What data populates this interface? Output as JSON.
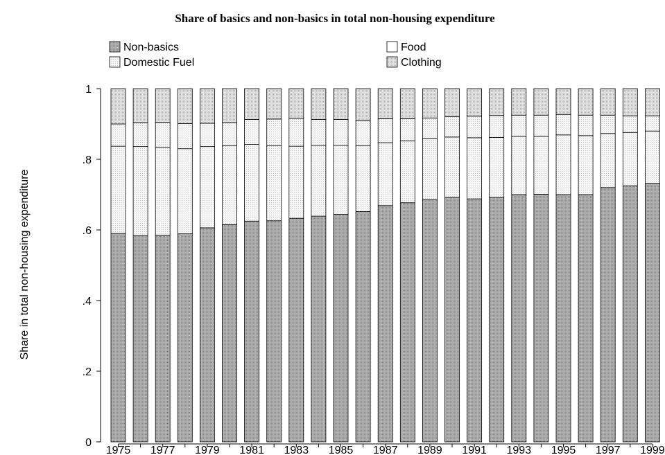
{
  "chart_data": {
    "type": "bar",
    "stacked": true,
    "title": "Share of basics and non-basics in total non-housing expenditure",
    "xlabel": "",
    "ylabel": "Share in total non-housing expenditure",
    "ylim": [
      0,
      1
    ],
    "yticks": [
      "0",
      ".2",
      ".4",
      ".6",
      ".8",
      "1"
    ],
    "grid": false,
    "legend_position": "top",
    "categories": [
      "1975",
      "1976",
      "1977",
      "1978",
      "1979",
      "1980",
      "1981",
      "1982",
      "1983",
      "1984",
      "1985",
      "1986",
      "1987",
      "1988",
      "1989",
      "1990",
      "1991",
      "1992",
      "1993",
      "1994",
      "1995",
      "1996",
      "1997",
      "1998",
      "1999"
    ],
    "x_tick_labels": [
      "1975",
      "",
      "1977",
      "",
      "1979",
      "",
      "1981",
      "",
      "1983",
      "",
      "1985",
      "",
      "1987",
      "",
      "1989",
      "",
      "1991",
      "",
      "1993",
      "",
      "1995",
      "",
      "1997",
      "",
      "1999"
    ],
    "series": [
      {
        "name": "Non-basics",
        "fill": "#a6a6a6",
        "values": [
          0.59,
          0.584,
          0.585,
          0.589,
          0.606,
          0.615,
          0.625,
          0.626,
          0.633,
          0.639,
          0.644,
          0.652,
          0.669,
          0.677,
          0.686,
          0.692,
          0.688,
          0.692,
          0.7,
          0.701,
          0.7,
          0.7,
          0.72,
          0.725,
          0.732
        ]
      },
      {
        "name": "Food",
        "fill": "#ffffff",
        "values": [
          0.247,
          0.252,
          0.249,
          0.241,
          0.23,
          0.223,
          0.217,
          0.212,
          0.204,
          0.2,
          0.195,
          0.186,
          0.178,
          0.175,
          0.173,
          0.171,
          0.173,
          0.17,
          0.165,
          0.164,
          0.169,
          0.167,
          0.153,
          0.151,
          0.148
        ]
      },
      {
        "name": "Domestic Fuel",
        "fill": "#f2f2f2",
        "values": [
          0.063,
          0.068,
          0.071,
          0.071,
          0.066,
          0.066,
          0.071,
          0.076,
          0.079,
          0.074,
          0.074,
          0.071,
          0.068,
          0.063,
          0.058,
          0.058,
          0.061,
          0.062,
          0.06,
          0.06,
          0.058,
          0.058,
          0.052,
          0.047,
          0.043
        ]
      },
      {
        "name": "Clothing",
        "fill": "#d4d4d4",
        "values": [
          0.1,
          0.096,
          0.095,
          0.099,
          0.098,
          0.096,
          0.087,
          0.086,
          0.084,
          0.087,
          0.087,
          0.091,
          0.085,
          0.085,
          0.083,
          0.079,
          0.078,
          0.076,
          0.075,
          0.075,
          0.073,
          0.075,
          0.075,
          0.077,
          0.077
        ]
      }
    ],
    "legend": [
      {
        "name": "Non-basics",
        "fill": "#a6a6a6"
      },
      {
        "name": "Food",
        "fill": "#ffffff"
      },
      {
        "name": "Domestic Fuel",
        "fill": "#f2f2f2"
      },
      {
        "name": "Clothing",
        "fill": "#d4d4d4"
      }
    ]
  }
}
